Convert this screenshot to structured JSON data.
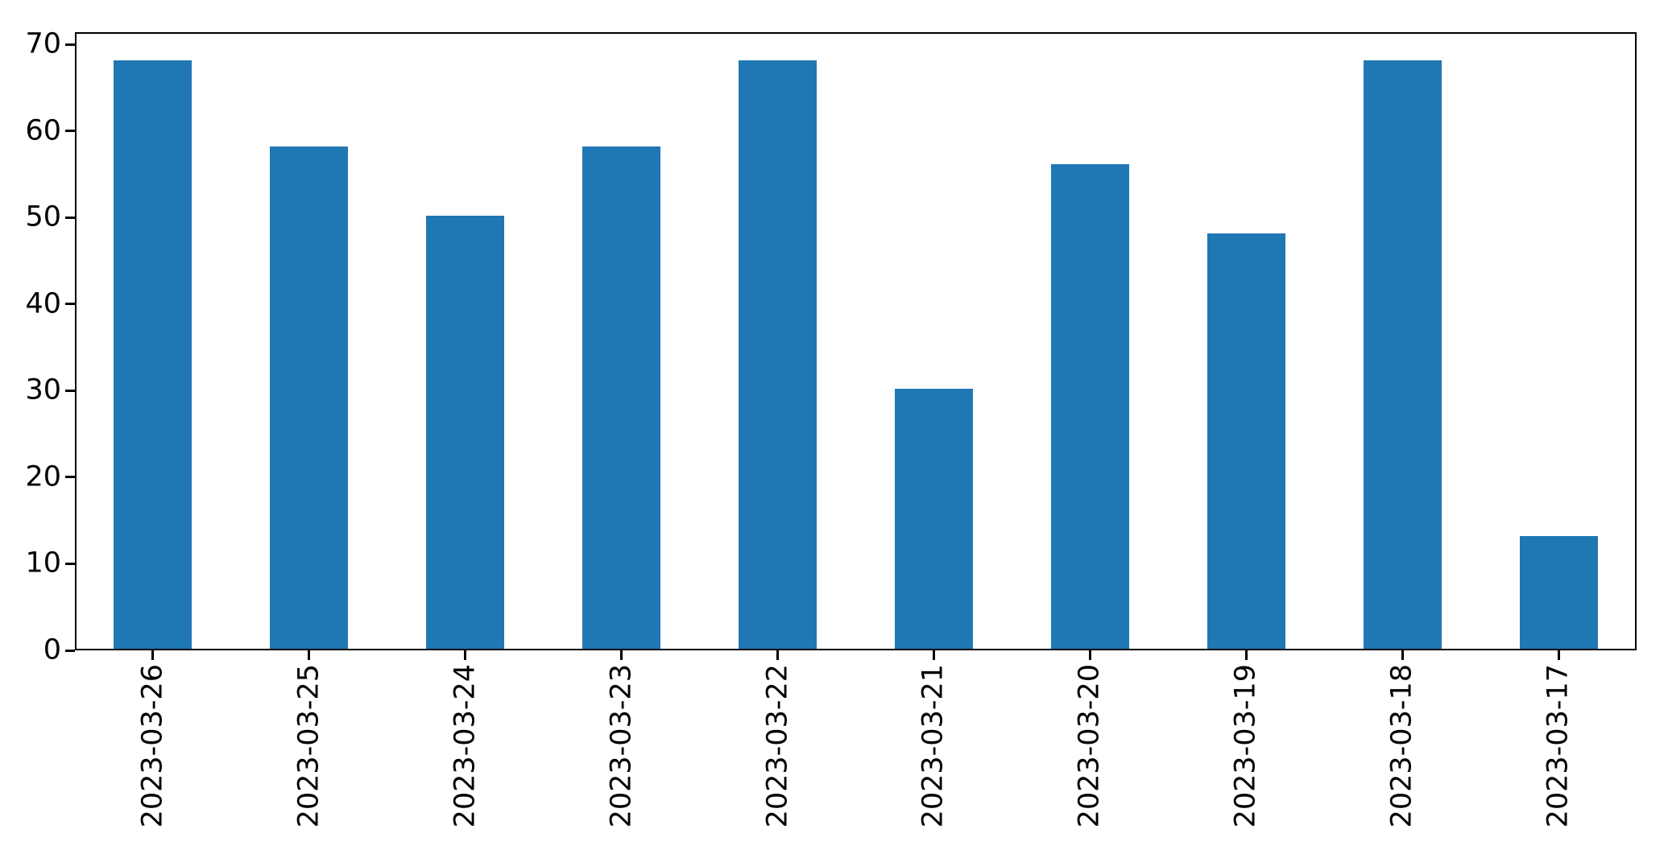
{
  "figure": {
    "background": "#ffffff",
    "spine_color": "#000000",
    "tick_color": "#000000"
  },
  "chart_data": {
    "type": "bar",
    "title": "",
    "xlabel": "",
    "ylabel": "",
    "categories": [
      "2023-03-26",
      "2023-03-25",
      "2023-03-24",
      "2023-03-23",
      "2023-03-22",
      "2023-03-21",
      "2023-03-20",
      "2023-03-19",
      "2023-03-18",
      "2023-03-17"
    ],
    "values": [
      68,
      58,
      50,
      58,
      68,
      30,
      56,
      48,
      68,
      13
    ],
    "bar_color": "#1f77b4",
    "yticks": [
      0,
      10,
      20,
      30,
      40,
      50,
      60,
      70
    ],
    "ylim": [
      0,
      71.4
    ],
    "grid": false,
    "legend": null,
    "x_tick_rotation": 90,
    "bar_width_fraction": 0.5
  }
}
